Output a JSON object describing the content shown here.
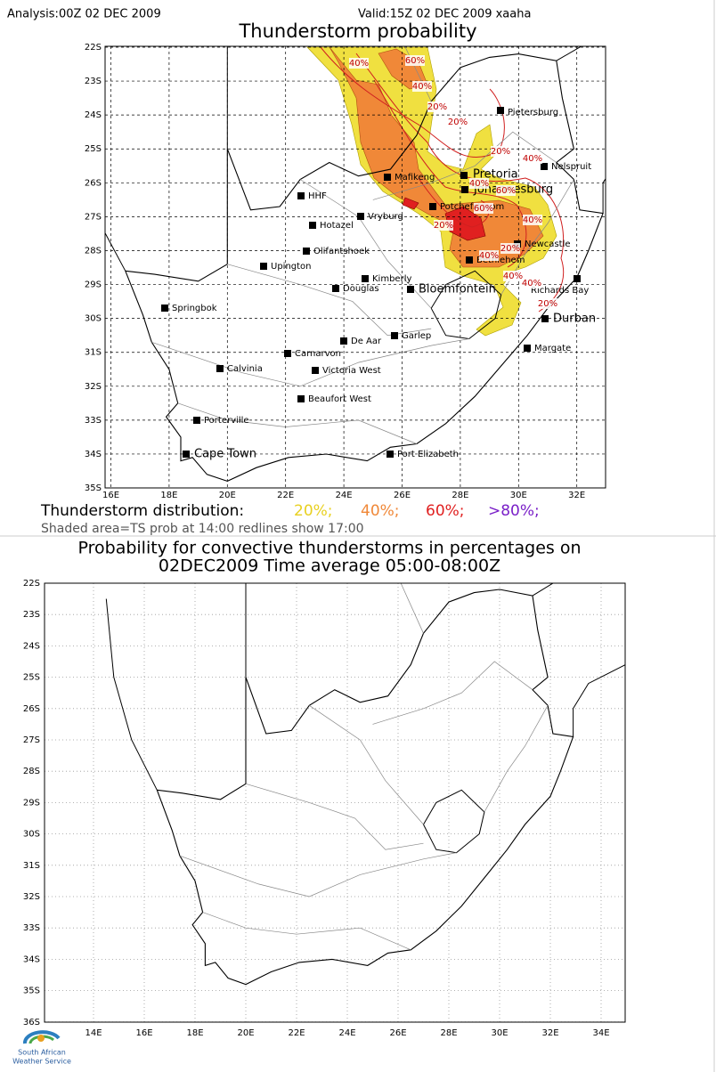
{
  "top_panel": {
    "analysis": "Analysis:00Z 02 DEC 2009",
    "valid": "Valid:15Z 02 DEC 2009 xaaha",
    "title": "Thunderstorm probability",
    "lat_labels": [
      "22S",
      "23S",
      "24S",
      "25S",
      "26S",
      "27S",
      "28S",
      "29S",
      "30S",
      "31S",
      "32S",
      "33S",
      "34S",
      "35S"
    ],
    "lon_labels": [
      "16E",
      "18E",
      "20E",
      "22E",
      "24E",
      "26E",
      "28E",
      "30E",
      "32E"
    ],
    "cities": [
      "Pietersburg",
      "Nelspruit",
      "Pretoria",
      "Johannesburg",
      "Mafikeng",
      "HHF",
      "Potchefstroom",
      "Vryburg",
      "Hotazel",
      "Newcastle",
      "Olifantshoek",
      "Upington",
      "Bethlehem",
      "Kimberly",
      "Douglas",
      "Bloemfontein",
      "Richards Bay",
      "Springbok",
      "Durban",
      "Garlep",
      "De Aar",
      "Carnarvon",
      "Margate",
      "Calvinia",
      "Victoria West",
      "Beaufort West",
      "Porterville",
      "Cape Town",
      "Port Elizabeth"
    ],
    "contour_labels": [
      "40%",
      "60%",
      "40%",
      "20%",
      "20%",
      "20%",
      "40%",
      "40%",
      "60%",
      "60%",
      "20%",
      "40%",
      "20%",
      "40%",
      "40%",
      "40%",
      "20%"
    ],
    "legend": {
      "label": "Thunderstorm distribution:",
      "items": [
        "20%;",
        "40%;",
        "60%;",
        ">80%;"
      ],
      "note": "Shaded area=TS prob at 14:00 redlines show 17:00"
    }
  },
  "bottom_panel": {
    "title_lines": [
      "Probability for convective thunderstorms in percentages on",
      "02DEC2009 Time average 05:00-08:00Z"
    ],
    "lat_labels": [
      "22S",
      "23S",
      "24S",
      "25S",
      "26S",
      "27S",
      "28S",
      "29S",
      "30S",
      "31S",
      "32S",
      "33S",
      "34S",
      "35S",
      "36S"
    ],
    "lon_labels": [
      "14E",
      "16E",
      "18E",
      "20E",
      "22E",
      "24E",
      "26E",
      "28E",
      "30E",
      "32E",
      "34E"
    ],
    "logo": [
      "South African",
      "Weather Service"
    ]
  }
}
